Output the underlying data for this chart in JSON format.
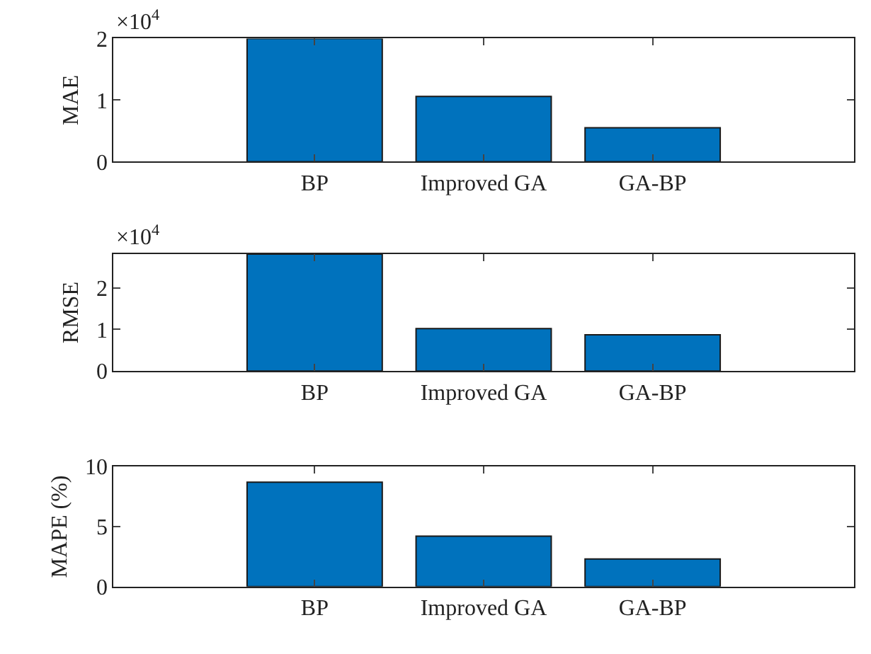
{
  "chart_data": [
    {
      "type": "bar",
      "ylabel": "MAE",
      "categories": [
        "BP",
        "Improved GA",
        "GA-BP"
      ],
      "values": [
        2.0,
        1.06,
        0.55
      ],
      "color": "#0072bd",
      "ylim": [
        0,
        2
      ],
      "yticks": [
        0,
        1,
        2
      ],
      "annotations": [
        "×10$^{4}$"
      ]
    },
    {
      "type": "bar",
      "ylabel": "RMSE",
      "categories": [
        "BP",
        "Improved GA",
        "GA-BP"
      ],
      "values": [
        2.81,
        1.02,
        0.87
      ],
      "color": "#0072bd",
      "ylim": [
        0,
        2.81
      ],
      "yticks": [
        0,
        1,
        2
      ],
      "annotations": [
        "×10$^{4}$"
      ]
    },
    {
      "type": "bar",
      "ylabel": "MAPE (%)",
      "categories": [
        "BP",
        "Improved GA",
        "GA-BP"
      ],
      "values": [
        8.7,
        4.2,
        2.3
      ],
      "color": "#0072bd",
      "ylim": [
        0,
        10
      ],
      "yticks": [
        0,
        5,
        10
      ]
    }
  ]
}
